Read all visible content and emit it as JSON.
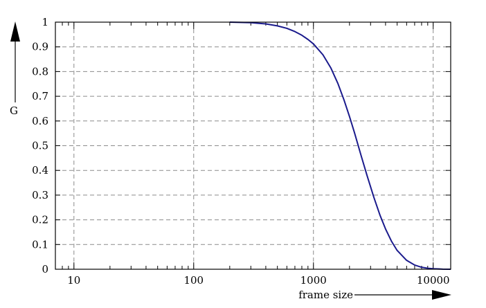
{
  "chart_data": {
    "type": "line",
    "xlabel": "frame size",
    "ylabel": "G",
    "x_scale": "log",
    "xlim": [
      7,
      14000
    ],
    "ylim": [
      0,
      1
    ],
    "grid": true,
    "x_ticks": [
      {
        "value": 10,
        "label": "10"
      },
      {
        "value": 100,
        "label": "100"
      },
      {
        "value": 1000,
        "label": "1000"
      },
      {
        "value": 10000,
        "label": "10000"
      }
    ],
    "y_ticks": [
      {
        "value": 0,
        "label": "0"
      },
      {
        "value": 0.1,
        "label": "0.1"
      },
      {
        "value": 0.2,
        "label": "0.2"
      },
      {
        "value": 0.3,
        "label": "0.3"
      },
      {
        "value": 0.4,
        "label": "0.4"
      },
      {
        "value": 0.5,
        "label": "0.5"
      },
      {
        "value": 0.6,
        "label": "0.6"
      },
      {
        "value": 0.7,
        "label": "0.7"
      },
      {
        "value": 0.8,
        "label": "0.8"
      },
      {
        "value": 0.9,
        "label": "0.9"
      },
      {
        "value": 1,
        "label": "1"
      }
    ],
    "series": [
      {
        "color": "#1a1a8c",
        "points": [
          [
            200,
            1.0
          ],
          [
            300,
            0.998
          ],
          [
            400,
            0.993
          ],
          [
            500,
            0.985
          ],
          [
            600,
            0.975
          ],
          [
            700,
            0.962
          ],
          [
            800,
            0.947
          ],
          [
            900,
            0.93
          ],
          [
            1000,
            0.912
          ],
          [
            1200,
            0.868
          ],
          [
            1400,
            0.814
          ],
          [
            1600,
            0.752
          ],
          [
            1800,
            0.685
          ],
          [
            2000,
            0.618
          ],
          [
            2200,
            0.553
          ],
          [
            2500,
            0.46
          ],
          [
            2800,
            0.38
          ],
          [
            3200,
            0.29
          ],
          [
            3600,
            0.218
          ],
          [
            4000,
            0.163
          ],
          [
            4500,
            0.112
          ],
          [
            5000,
            0.076
          ],
          [
            6000,
            0.036
          ],
          [
            7000,
            0.017
          ],
          [
            8000,
            0.008
          ],
          [
            9000,
            0.004
          ],
          [
            10000,
            0.002
          ],
          [
            12000,
            0.0005
          ],
          [
            14000,
            0.0
          ]
        ]
      }
    ]
  }
}
